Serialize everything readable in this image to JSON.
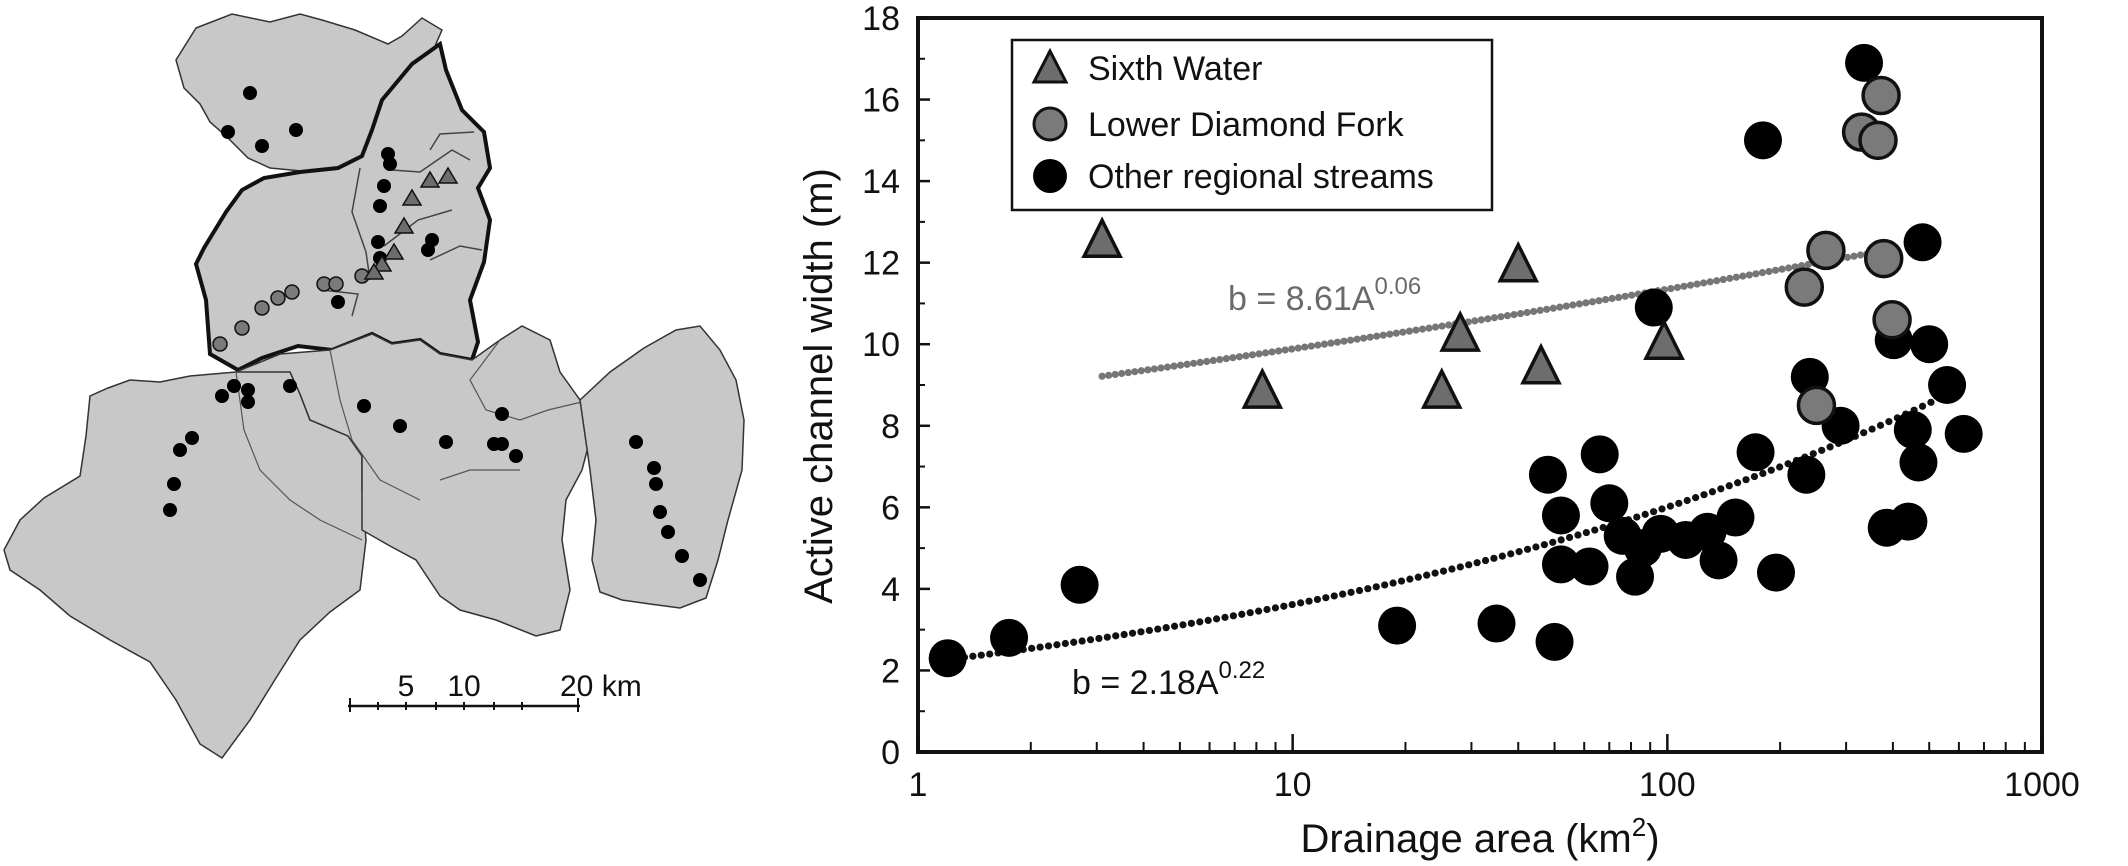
{
  "map": {
    "scale_labels": [
      "5",
      "10",
      "20 km"
    ]
  },
  "chart_data": {
    "type": "scatter",
    "xscale": "log",
    "xlim": [
      1,
      1000
    ],
    "ylim": [
      0,
      18
    ],
    "xlabel": "Drainage area (km",
    "xlabel_sup": "2",
    "xlabel_end": ")",
    "ylabel": "Active channel width (m)",
    "xticks": [
      1,
      10,
      100,
      1000
    ],
    "xtick_labels": [
      "1",
      "10",
      "100",
      "1000"
    ],
    "yticks": [
      0,
      2,
      4,
      6,
      8,
      10,
      12,
      14,
      16,
      18
    ],
    "ytick_labels": [
      "0",
      "2",
      "4",
      "6",
      "8",
      "10",
      "12",
      "14",
      "16",
      "18"
    ],
    "legend_position": "top-left",
    "colors": {
      "sixth": "#6d6d6d",
      "lower": "#7a7a7a",
      "other": "#000000",
      "trend_lower": "#767676",
      "trend_other": "#111111"
    },
    "series": [
      {
        "name": "Sixth Water",
        "marker": "triangle",
        "points": [
          [
            3.1,
            12.5
          ],
          [
            8.3,
            8.8
          ],
          [
            25,
            8.8
          ],
          [
            28,
            10.2
          ],
          [
            40,
            11.9
          ],
          [
            46,
            9.4
          ],
          [
            98,
            10.0
          ]
        ]
      },
      {
        "name": "Lower Diamond Fork",
        "marker": "circle-gray",
        "points": [
          [
            232,
            11.4
          ],
          [
            265,
            12.3
          ],
          [
            250,
            8.5
          ],
          [
            330,
            15.2
          ],
          [
            365,
            15.0
          ],
          [
            372,
            16.1
          ],
          [
            378,
            12.1
          ],
          [
            398,
            10.6
          ]
        ]
      },
      {
        "name": "Other regional streams",
        "marker": "circle",
        "points": [
          [
            1.2,
            2.3
          ],
          [
            1.75,
            2.8
          ],
          [
            2.7,
            4.1
          ],
          [
            19,
            3.1
          ],
          [
            35,
            3.15
          ],
          [
            50,
            2.7
          ],
          [
            48,
            6.8
          ],
          [
            52,
            5.8
          ],
          [
            52,
            4.6
          ],
          [
            62,
            4.55
          ],
          [
            66,
            7.3
          ],
          [
            70,
            6.1
          ],
          [
            76,
            5.3
          ],
          [
            82,
            4.3
          ],
          [
            86,
            5.0
          ],
          [
            92,
            10.9
          ],
          [
            96,
            5.35
          ],
          [
            112,
            5.2
          ],
          [
            128,
            5.4
          ],
          [
            137,
            4.7
          ],
          [
            152,
            5.75
          ],
          [
            172,
            7.35
          ],
          [
            180,
            15.0
          ],
          [
            195,
            4.4
          ],
          [
            235,
            6.8
          ],
          [
            240,
            9.2
          ],
          [
            290,
            8.0
          ],
          [
            335,
            16.9
          ],
          [
            385,
            5.5
          ],
          [
            402,
            10.1
          ],
          [
            440,
            5.65
          ],
          [
            452,
            7.9
          ],
          [
            468,
            7.1
          ],
          [
            480,
            12.5
          ],
          [
            500,
            10.0
          ],
          [
            558,
            9.0
          ],
          [
            618,
            7.8
          ]
        ]
      }
    ],
    "trendlines": [
      {
        "label_prefix": "b = 8.61A",
        "label_exp": "0.06",
        "a": 8.61,
        "b": 0.06,
        "x_range": [
          3.1,
          385
        ]
      },
      {
        "label_prefix": "b = 2.18A",
        "label_exp": "0.22",
        "a": 2.18,
        "b": 0.22,
        "x_range": [
          1.2,
          590
        ]
      }
    ]
  }
}
